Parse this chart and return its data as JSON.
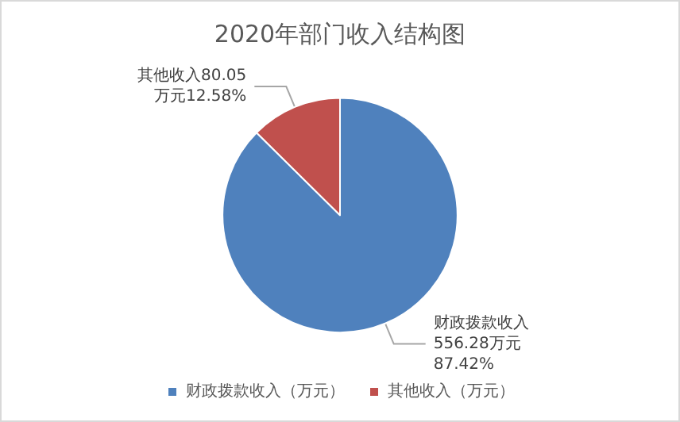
{
  "chart_data": {
    "type": "pie",
    "title": "2020年部门收入结构图",
    "categories": [
      "财政拨款收入（万元）",
      "其他收入（万元）"
    ],
    "values": [
      556.28,
      80.05
    ],
    "colors": [
      "#4f81bd",
      "#c0504d"
    ],
    "value_labels": [
      "财政拨款收入\n556.28万元\n87.42%",
      "其他收入80.05\n万元12.58%"
    ],
    "legend": "bottom"
  }
}
